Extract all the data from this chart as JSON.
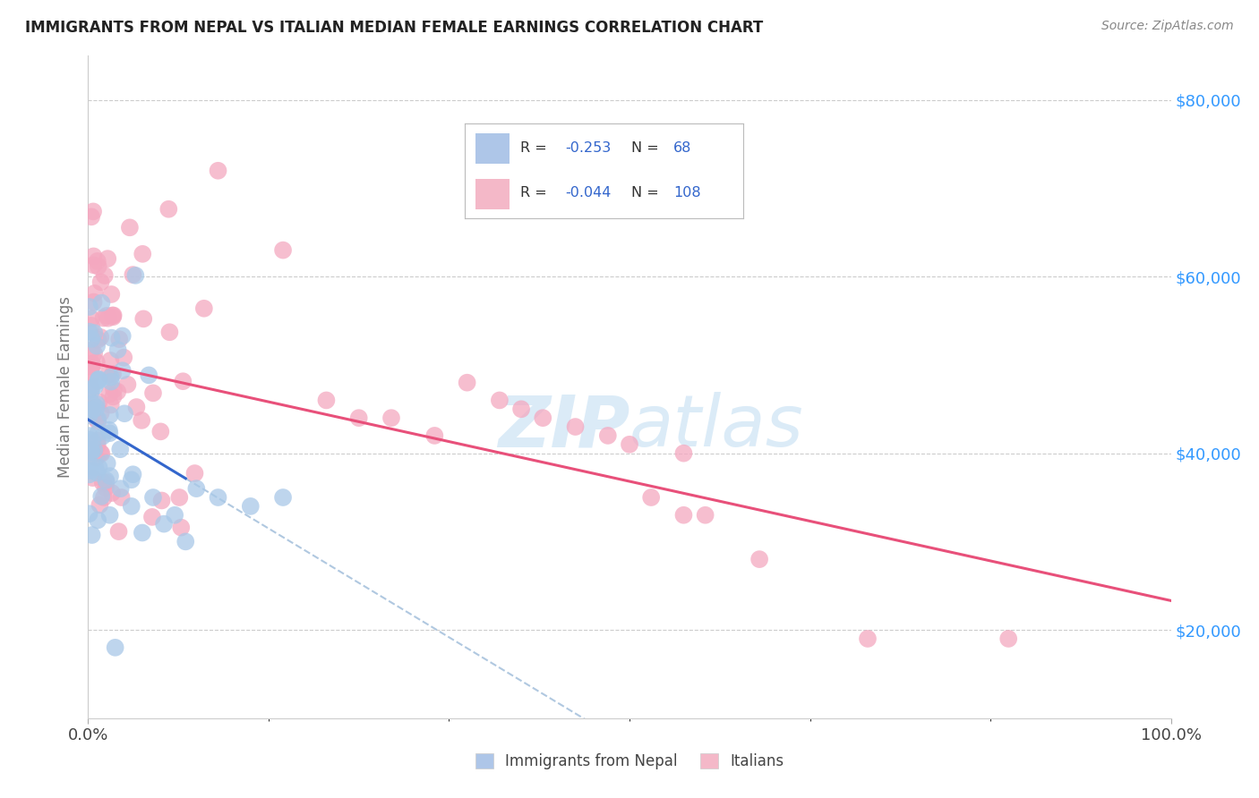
{
  "title": "IMMIGRANTS FROM NEPAL VS ITALIAN MEDIAN FEMALE EARNINGS CORRELATION CHART",
  "source_text": "Source: ZipAtlas.com",
  "ylabel": "Median Female Earnings",
  "series1_label": "Immigrants from Nepal",
  "series2_label": "Italians",
  "series1_R": -0.253,
  "series1_N": 68,
  "series2_R": -0.044,
  "series2_N": 108,
  "series1_legend_color": "#aec6e8",
  "series2_legend_color": "#f4b8c8",
  "series1_line_color": "#3366cc",
  "series2_line_color": "#e8507a",
  "series1_scatter_color": "#a8c8e8",
  "series2_scatter_color": "#f4a8c0",
  "dashed_color": "#b0c8e0",
  "background_color": "#ffffff",
  "grid_color": "#cccccc",
  "xmin": 0.0,
  "xmax": 1.0,
  "ymin": 10000,
  "ymax": 85000,
  "yticks": [
    20000,
    40000,
    60000,
    80000
  ],
  "ytick_labels": [
    "$20,000",
    "$40,000",
    "$60,000",
    "$80,000"
  ],
  "watermark_text": "ZipAtlas",
  "watermark_color": "#b8d8f0",
  "title_fontsize": 12,
  "legend_fontsize": 12,
  "rn_color": "#3366cc"
}
